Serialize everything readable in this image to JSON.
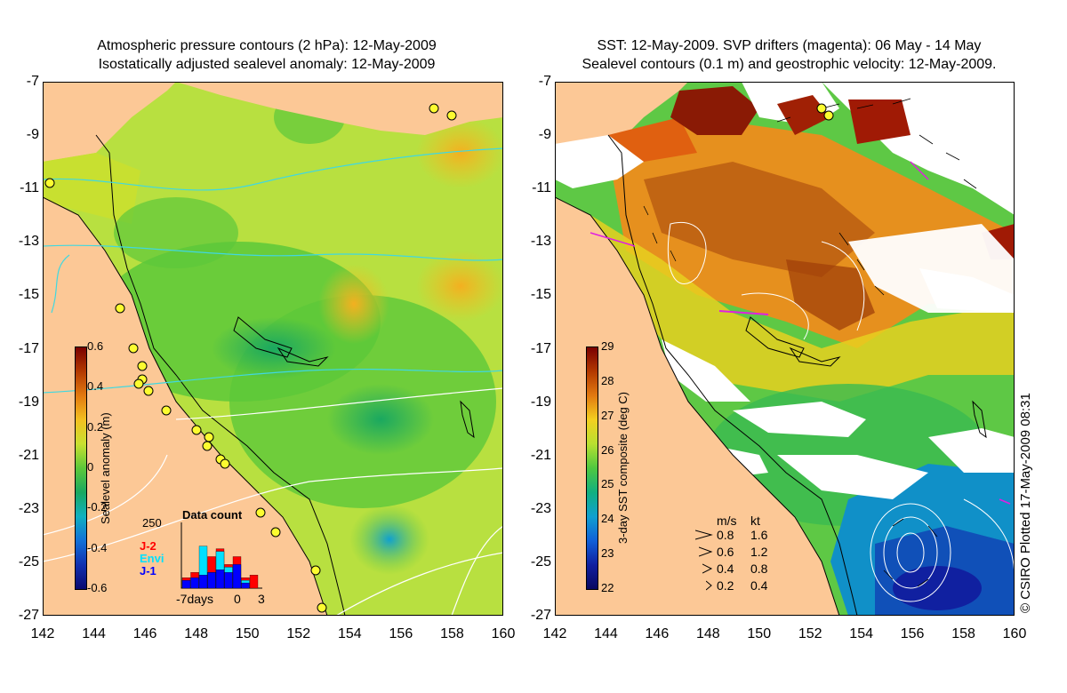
{
  "left_panel": {
    "title_line1": "Atmospheric pressure contours (2 hPa): 12-May-2009",
    "title_line2": "Isostatically adjusted sealevel anomaly: 12-May-2009",
    "y_ticks": [
      "-7",
      "-9",
      "-11",
      "-13",
      "-15",
      "-17",
      "-19",
      "-21",
      "-23",
      "-25",
      "-27"
    ],
    "x_ticks": [
      "142",
      "144",
      "146",
      "148",
      "150",
      "152",
      "154",
      "156",
      "158",
      "160"
    ],
    "colorbar": {
      "label": "Sealevel anomaly (m)",
      "ticks": [
        "0.6",
        "0.4",
        "0.2",
        "0",
        "-0.2",
        "-0.4",
        "-0.6"
      ],
      "colors": [
        "#7a0000",
        "#b33a00",
        "#e27a10",
        "#f3c020",
        "#c8e030",
        "#5cc83a",
        "#1aa860",
        "#10b0c0",
        "#1070d8",
        "#1030b0",
        "#0a0a70"
      ]
    },
    "data_count": {
      "title": "Data count",
      "ymax": "250",
      "legend": [
        {
          "label": "J-2",
          "color": "#ff0000"
        },
        {
          "label": "Envi",
          "color": "#00e0ff"
        },
        {
          "label": "J-1",
          "color": "#0000ff"
        }
      ],
      "x_label_days": "-7days",
      "x_label_zero": "0",
      "x_label_three": "3",
      "bars": [
        {
          "red": 40,
          "cyan": 0,
          "blue": 30
        },
        {
          "red": 60,
          "cyan": 0,
          "blue": 40
        },
        {
          "red": 60,
          "cyan": 160,
          "blue": 50
        },
        {
          "red": 120,
          "cyan": 60,
          "blue": 60
        },
        {
          "red": 150,
          "cyan": 140,
          "blue": 70
        },
        {
          "red": 90,
          "cyan": 80,
          "blue": 60
        },
        {
          "red": 120,
          "cyan": 0,
          "blue": 90
        },
        {
          "red": 40,
          "cyan": 30,
          "blue": 20
        },
        {
          "red": 50,
          "cyan": 0,
          "blue": 0
        }
      ]
    }
  },
  "right_panel": {
    "title_line1": "SST: 12-May-2009. SVP drifters (magenta): 06 May - 14 May",
    "title_line2": "Sealevel contours (0.1 m) and geostrophic velocity: 12-May-2009.",
    "y_ticks": [
      "-7",
      "-9",
      "-11",
      "-13",
      "-15",
      "-17",
      "-19",
      "-21",
      "-23",
      "-25",
      "-27"
    ],
    "x_ticks": [
      "142",
      "144",
      "146",
      "148",
      "150",
      "152",
      "154",
      "156",
      "158",
      "160"
    ],
    "colorbar": {
      "label": "3-day SST composite (deg C)",
      "ticks": [
        "29",
        "28",
        "27",
        "26",
        "25",
        "24",
        "23",
        "22"
      ],
      "colors": [
        "#7a0000",
        "#b33a00",
        "#e27a10",
        "#f3d020",
        "#b8e030",
        "#4ec840",
        "#10b080",
        "#10a0d0",
        "#1060d8",
        "#1020a0",
        "#080860"
      ]
    },
    "velocity_legend": {
      "header_ms": "m/s",
      "header_kt": "kt",
      "rows": [
        {
          "ms": "0.8",
          "kt": "1.6"
        },
        {
          "ms": "0.6",
          "kt": "1.2"
        },
        {
          "ms": "0.4",
          "kt": "0.8"
        },
        {
          "ms": "0.2",
          "kt": "0.4"
        }
      ]
    }
  },
  "credit": "© CSIRO Plotted 17-May-2009 08:31"
}
